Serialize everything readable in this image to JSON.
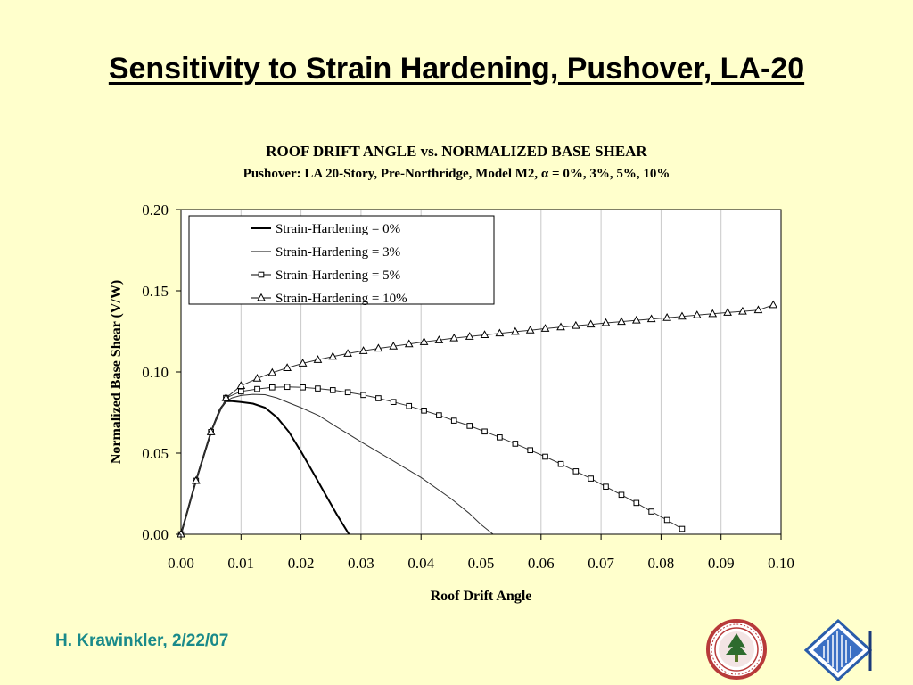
{
  "slide": {
    "title": "Sensitivity to Strain Hardening, Pushover, LA-20",
    "footer": "H. Krawinkler, 2/22/07"
  },
  "logos": [
    {
      "icon": "stanford-seal-icon",
      "color": "#B83A3A"
    },
    {
      "icon": "blume-center-logo-icon",
      "color": "#2a5caa"
    }
  ],
  "chart_data": {
    "type": "line",
    "title": "ROOF DRIFT ANGLE vs. NORMALIZED BASE SHEAR",
    "subtitle": "Pushover: LA 20-Story, Pre-Northridge, Model M2, α = 0%, 3%, 5%, 10%",
    "xlabel": "Roof Drift Angle",
    "ylabel": "Normalized Base Shear (V/W)",
    "xlim": [
      0,
      0.1
    ],
    "ylim": [
      0,
      0.2
    ],
    "xticks": [
      "0.00",
      "0.01",
      "0.02",
      "0.03",
      "0.04",
      "0.05",
      "0.06",
      "0.07",
      "0.08",
      "0.09",
      "0.10"
    ],
    "yticks": [
      "0.00",
      "0.05",
      "0.10",
      "0.15",
      "0.20"
    ],
    "grid": "vertical",
    "legend_position": "top-left",
    "series": [
      {
        "name": "Strain-Hardening = 0%",
        "marker": "none",
        "stroke": "heavy",
        "x": [
          0,
          0.0025,
          0.005,
          0.0065,
          0.0075,
          0.0085,
          0.01,
          0.012,
          0.014,
          0.016,
          0.018,
          0.02,
          0.022,
          0.024,
          0.026,
          0.028
        ],
        "y": [
          0,
          0.033,
          0.063,
          0.077,
          0.082,
          0.082,
          0.0815,
          0.0805,
          0.078,
          0.072,
          0.063,
          0.051,
          0.038,
          0.025,
          0.012,
          0.0
        ]
      },
      {
        "name": "Strain-Hardening = 3%",
        "marker": "none",
        "stroke": "thin",
        "x": [
          0,
          0.0025,
          0.005,
          0.0065,
          0.0075,
          0.0085,
          0.01,
          0.012,
          0.014,
          0.016,
          0.018,
          0.02,
          0.023,
          0.026,
          0.03,
          0.035,
          0.04,
          0.045,
          0.048,
          0.05,
          0.052
        ],
        "y": [
          0,
          0.033,
          0.063,
          0.077,
          0.082,
          0.084,
          0.0855,
          0.0862,
          0.086,
          0.084,
          0.081,
          0.078,
          0.073,
          0.066,
          0.057,
          0.046,
          0.035,
          0.022,
          0.013,
          0.006,
          0.0
        ]
      },
      {
        "name": "Strain-Hardening = 5%",
        "marker": "square",
        "stroke": "thin",
        "x": [
          0,
          0.0025,
          0.005,
          0.0075,
          0.01,
          0.0127,
          0.0152,
          0.0177,
          0.0203,
          0.0228,
          0.0253,
          0.0278,
          0.0304,
          0.0329,
          0.0354,
          0.038,
          0.0405,
          0.043,
          0.0455,
          0.0481,
          0.0506,
          0.0531,
          0.0557,
          0.0582,
          0.0607,
          0.0633,
          0.0658,
          0.0683,
          0.0708,
          0.0734,
          0.0759,
          0.0784,
          0.081,
          0.0835
        ],
        "y": [
          0,
          0.033,
          0.063,
          0.084,
          0.088,
          0.0895,
          0.0905,
          0.0908,
          0.0905,
          0.0898,
          0.0888,
          0.0875,
          0.0858,
          0.0838,
          0.0815,
          0.079,
          0.0762,
          0.0733,
          0.07,
          0.0668,
          0.0633,
          0.0597,
          0.0558,
          0.0518,
          0.0478,
          0.0433,
          0.0388,
          0.0343,
          0.0293,
          0.0243,
          0.0193,
          0.014,
          0.0088,
          0.0033
        ]
      },
      {
        "name": "Strain-Hardening = 10%",
        "marker": "triangle",
        "stroke": "thin",
        "x": [
          0,
          0.0025,
          0.005,
          0.0075,
          0.01,
          0.0127,
          0.0152,
          0.0177,
          0.0203,
          0.0228,
          0.0253,
          0.0278,
          0.0304,
          0.0329,
          0.0354,
          0.038,
          0.0405,
          0.043,
          0.0455,
          0.0481,
          0.0506,
          0.0531,
          0.0557,
          0.0582,
          0.0607,
          0.0633,
          0.0658,
          0.0683,
          0.0708,
          0.0734,
          0.0759,
          0.0784,
          0.081,
          0.0835,
          0.086,
          0.0886,
          0.0911,
          0.0936,
          0.0962,
          0.0987
        ],
        "y": [
          0,
          0.033,
          0.063,
          0.084,
          0.0915,
          0.096,
          0.0995,
          0.1025,
          0.1053,
          0.1075,
          0.1095,
          0.1113,
          0.113,
          0.1145,
          0.1158,
          0.1172,
          0.1185,
          0.1196,
          0.1208,
          0.1218,
          0.1228,
          0.1238,
          0.1248,
          0.1257,
          0.1267,
          0.1276,
          0.1285,
          0.1293,
          0.1302,
          0.131,
          0.1318,
          0.1326,
          0.1334,
          0.1342,
          0.135,
          0.1358,
          0.1366,
          0.1373,
          0.1381,
          0.1413
        ]
      }
    ]
  }
}
